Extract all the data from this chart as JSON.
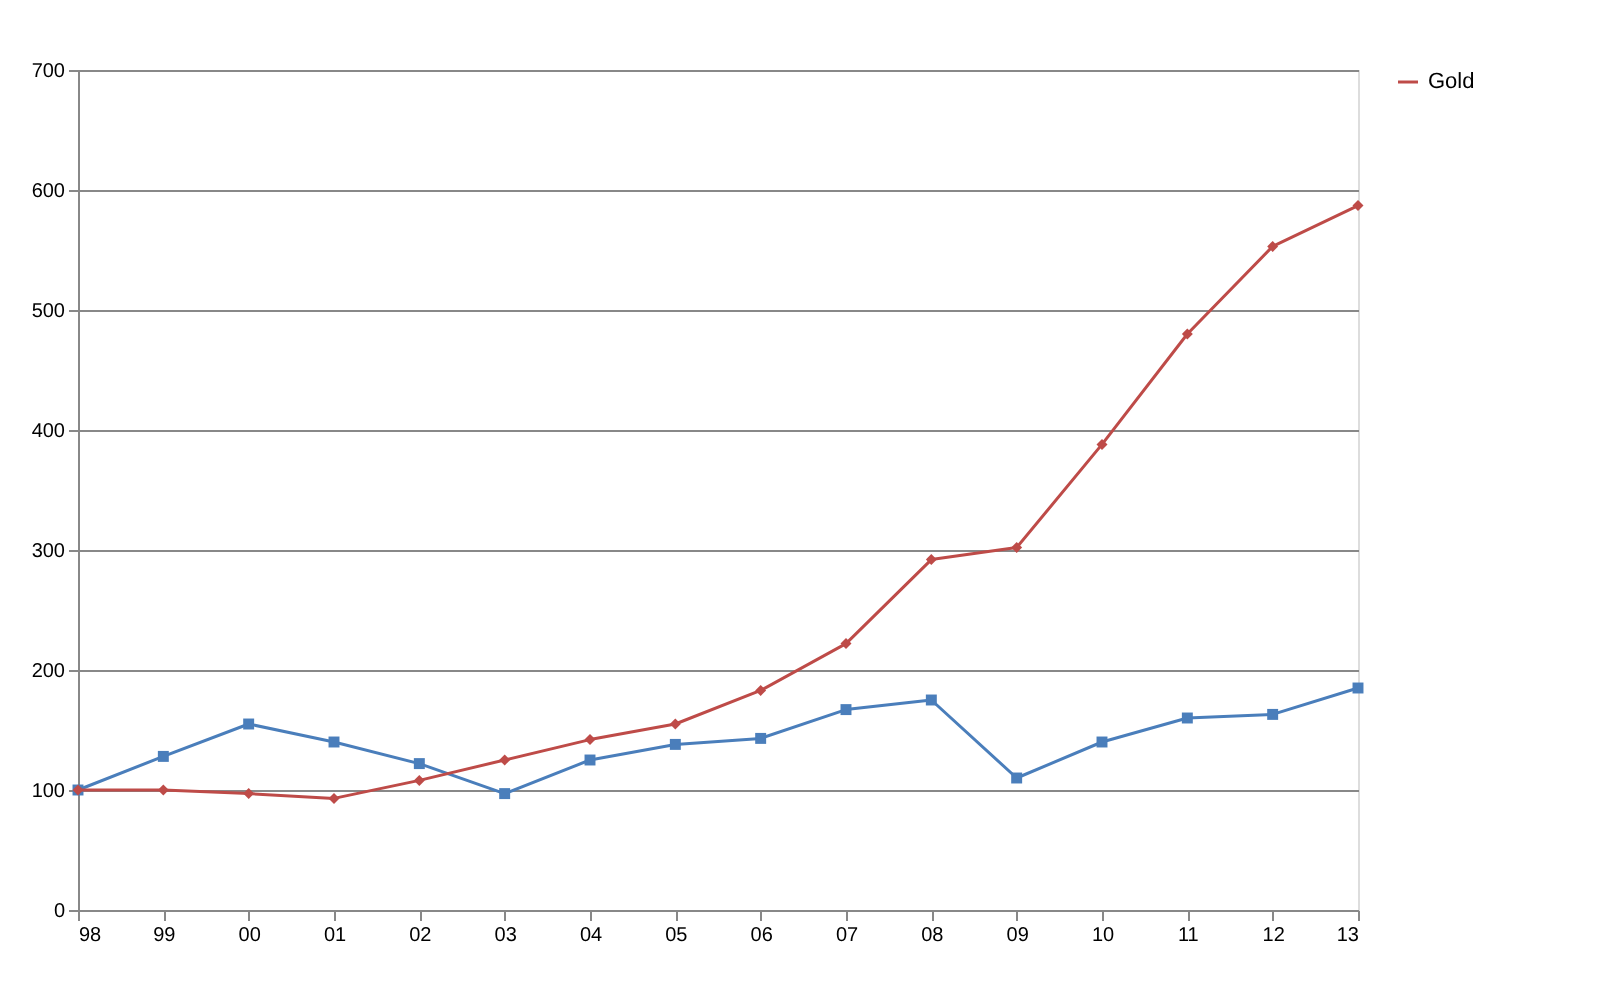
{
  "chart_data": {
    "type": "line",
    "categories": [
      "98",
      "99",
      "00",
      "01",
      "02",
      "03",
      "04",
      "05",
      "06",
      "07",
      "08",
      "09",
      "10",
      "11",
      "12",
      "13"
    ],
    "series": [
      {
        "color": "#4a7ebb",
        "marker": "square",
        "values": [
          100,
          128,
          155,
          140,
          122,
          97,
          125,
          138,
          143,
          167,
          175,
          110,
          140,
          160,
          163,
          185
        ]
      },
      {
        "name": "Gold",
        "color": "#be4b48",
        "marker": "diamond",
        "values": [
          100,
          100,
          97,
          93,
          108,
          125,
          142,
          155,
          183,
          222,
          292,
          302,
          388,
          480,
          553,
          587
        ]
      }
    ],
    "ylim": [
      0,
      700
    ],
    "yticks": [
      0,
      100,
      200,
      300,
      400,
      500,
      600,
      700
    ],
    "grid": "y",
    "legend": "right",
    "line_style": "solid"
  }
}
